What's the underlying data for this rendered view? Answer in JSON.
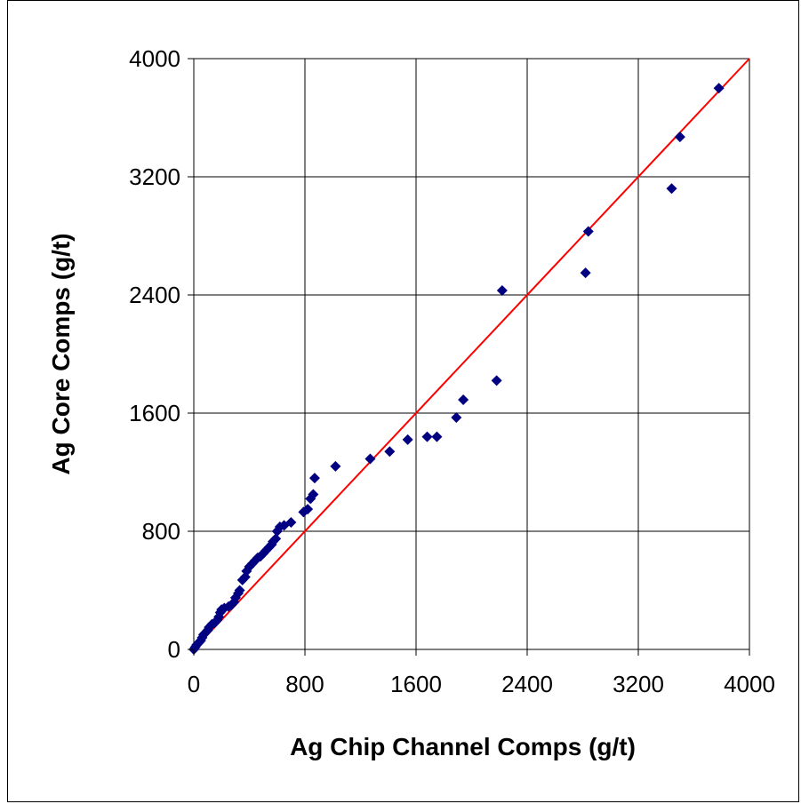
{
  "chart_data": {
    "type": "scatter",
    "title": "",
    "xlabel": "Ag Chip Channel Comps (g/t)",
    "ylabel": "Ag Core Comps (g/t)",
    "xlim": [
      0,
      4000
    ],
    "ylim": [
      0,
      4000
    ],
    "xticks": [
      0,
      800,
      1600,
      2400,
      3200,
      4000
    ],
    "yticks": [
      0,
      800,
      1600,
      2400,
      3200,
      4000
    ],
    "grid": true,
    "legend": "none",
    "series": [
      {
        "marker": "diamond",
        "color": "#000080",
        "points": [
          [
            0,
            0
          ],
          [
            10,
            15
          ],
          [
            20,
            30
          ],
          [
            30,
            40
          ],
          [
            40,
            50
          ],
          [
            50,
            60
          ],
          [
            60,
            80
          ],
          [
            70,
            100
          ],
          [
            80,
            110
          ],
          [
            100,
            130
          ],
          [
            110,
            150
          ],
          [
            130,
            170
          ],
          [
            150,
            180
          ],
          [
            170,
            200
          ],
          [
            180,
            220
          ],
          [
            190,
            250
          ],
          [
            200,
            270
          ],
          [
            220,
            280
          ],
          [
            250,
            290
          ],
          [
            270,
            300
          ],
          [
            290,
            320
          ],
          [
            300,
            350
          ],
          [
            320,
            380
          ],
          [
            330,
            400
          ],
          [
            350,
            470
          ],
          [
            370,
            490
          ],
          [
            380,
            530
          ],
          [
            400,
            560
          ],
          [
            420,
            580
          ],
          [
            440,
            600
          ],
          [
            460,
            620
          ],
          [
            480,
            630
          ],
          [
            500,
            650
          ],
          [
            520,
            670
          ],
          [
            540,
            690
          ],
          [
            560,
            710
          ],
          [
            570,
            730
          ],
          [
            590,
            750
          ],
          [
            600,
            800
          ],
          [
            620,
            830
          ],
          [
            650,
            840
          ],
          [
            700,
            860
          ],
          [
            790,
            930
          ],
          [
            820,
            950
          ],
          [
            840,
            1020
          ],
          [
            860,
            1050
          ],
          [
            870,
            1160
          ],
          [
            1020,
            1240
          ],
          [
            1270,
            1290
          ],
          [
            1410,
            1340
          ],
          [
            1540,
            1420
          ],
          [
            1680,
            1440
          ],
          [
            1750,
            1440
          ],
          [
            1890,
            1570
          ],
          [
            1940,
            1690
          ],
          [
            2180,
            1820
          ],
          [
            2220,
            2430
          ],
          [
            2820,
            2550
          ],
          [
            2840,
            2830
          ],
          [
            3440,
            3120
          ],
          [
            3500,
            3470
          ],
          [
            3780,
            3800
          ]
        ]
      },
      {
        "type": "line",
        "color": "#ff0000",
        "points": [
          [
            0,
            0
          ],
          [
            4000,
            4000
          ]
        ]
      }
    ]
  }
}
